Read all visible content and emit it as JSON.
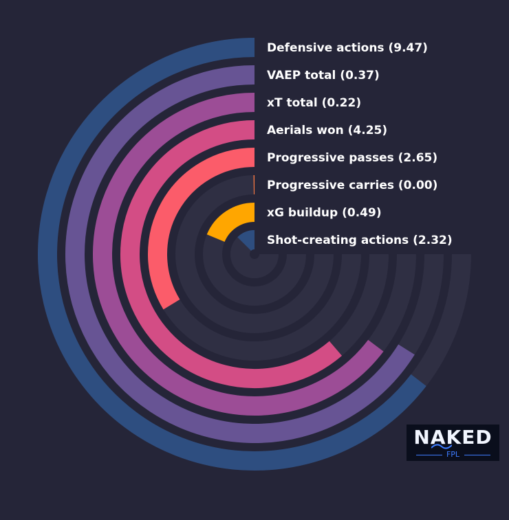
{
  "chart_data": {
    "type": "radial-bar",
    "title": "",
    "max_angle_deg": 270,
    "series": [
      {
        "label": "Defensive actions (9.47)",
        "value": 9.47,
        "max": 11.0,
        "color": "#2e4e80"
      },
      {
        "label": "VAEP total (0.37)",
        "value": 0.37,
        "max": 0.42,
        "color": "#675494"
      },
      {
        "label": "xT total (0.22)",
        "value": 0.22,
        "max": 0.255,
        "color": "#9c4d96"
      },
      {
        "label": "Aerials won (4.25)",
        "value": 4.25,
        "max": 5.2,
        "color": "#d34d85"
      },
      {
        "label": "Progressive passes (2.65)",
        "value": 2.65,
        "max": 5.9,
        "color": "#fb5c6a"
      },
      {
        "label": "Progressive carries (0.00)",
        "value": 0.0,
        "max": 1.0,
        "color": "#ff7b42"
      },
      {
        "label": "xG buildup (0.49)",
        "value": 0.49,
        "max": 1.96,
        "color": "#ffa600"
      },
      {
        "label": "Shot-creating actions (2.32)",
        "value": 2.32,
        "max": 13.9,
        "color": "#2e4e80"
      }
    ],
    "track_color": "#2f2f43",
    "background": "#252538"
  },
  "logo": {
    "word": "NAKED",
    "sub": "FPL"
  }
}
